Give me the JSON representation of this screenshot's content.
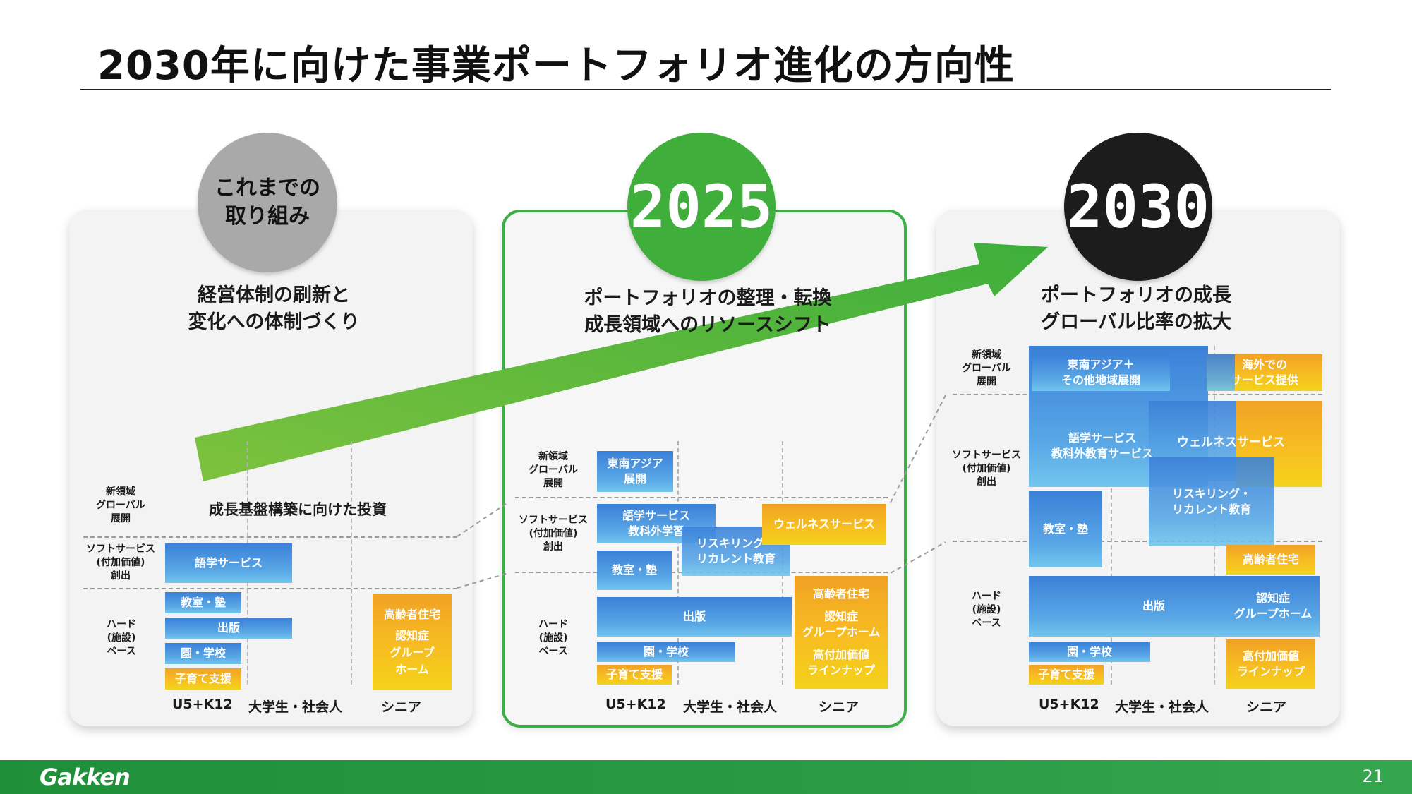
{
  "page": {
    "title": "2030年に向けた事業ポートフォリオ進化の方向性",
    "page_number": "21",
    "logo_text": "Gakken",
    "colors": {
      "green": "#3fae3a",
      "footer": "#2a9a44",
      "blue": "#4a94df",
      "orange": "#f5b021",
      "dark": "#1c1c1c",
      "grey": "#a9a9a9"
    }
  },
  "row_labels": {
    "new": [
      "新領域",
      "グローバル",
      "展開"
    ],
    "soft": [
      "ソフトサービス",
      "付加価値",
      "創出"
    ],
    "hard": [
      "ハード",
      "施設",
      "ベース"
    ]
  },
  "col_labels": [
    "U5+K12",
    "大学生・社会人",
    "シニア"
  ],
  "panel1": {
    "badge": [
      "これまでの",
      "取り組み"
    ],
    "heading": [
      "経営体制の刷新と",
      "変化への体制づくり"
    ],
    "investment_label": "成長基盤構築に向けた投資",
    "boxes": {
      "lang": "語学サービス",
      "classroom": "教室・塾",
      "publishing": "出版",
      "school": "園・学校",
      "childcare": "子育て支援",
      "senior": [
        "高齢者住宅",
        "認知症",
        "グループ",
        "ホーム"
      ]
    }
  },
  "panel2": {
    "badge": "2025",
    "heading": [
      "ポートフォリオの整理・転換",
      "成長領域へのリソースシフト"
    ],
    "boxes": {
      "sea": [
        "東南アジア",
        "展開"
      ],
      "lang": [
        "語学サービス",
        "教科外学習"
      ],
      "reskill": [
        "リスキリング・",
        "リカレント教育"
      ],
      "wellness": "ウェルネスサービス",
      "classroom": "教室・塾",
      "publishing": "出版",
      "school": "園・学校",
      "childcare": "子育て支援",
      "senior": [
        "高齢者住宅",
        "認知症",
        "グループホーム",
        "高付加価値",
        "ラインナップ"
      ]
    }
  },
  "panel3": {
    "badge": "2030",
    "heading": [
      "ポートフォリオの成長",
      "グローバル比率の拡大"
    ],
    "boxes": {
      "sea": [
        "東南アジア＋",
        "その他地域展開"
      ],
      "overseas": [
        "海外での",
        "サービス提供"
      ],
      "lang": [
        "語学サービス",
        "教科外教育サービス"
      ],
      "wellness": "ウェルネスサービス",
      "reskill": [
        "リスキリング・",
        "リカレント教育"
      ],
      "classroom": "教室・塾",
      "publishing": "出版",
      "senior_home": "高齢者住宅",
      "dementia": [
        "認知症",
        "グループホーム"
      ],
      "value": [
        "高付加価値",
        "ラインナップ"
      ],
      "school": "園・学校",
      "childcare": "子育て支援"
    }
  }
}
